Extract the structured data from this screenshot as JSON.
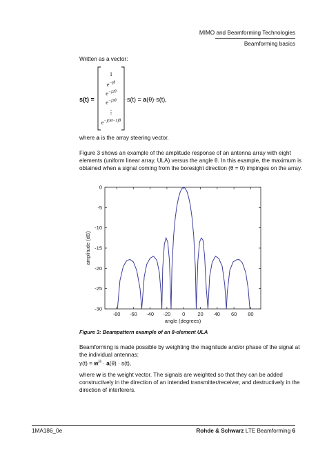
{
  "header": {
    "title": "MIMO and Beamforming Technologies",
    "section": "Beamforming basics"
  },
  "intro": "Written as a vector:",
  "equation1": {
    "lhs": "s(t) =",
    "entries": [
      "1",
      {
        "base": "e",
        "exp": "−jθ"
      },
      {
        "base": "e",
        "exp": "−j2θ"
      },
      {
        "base": "e",
        "exp": "−j3θ"
      },
      "⋮",
      {
        "base": "e",
        "exp": "−j(M−1)θ"
      }
    ],
    "rhs_start": "·s(t) = ",
    "rhs_bold": "a",
    "rhs_end": "(θ)·s(t),"
  },
  "para1": {
    "start": "where ",
    "bold": "a",
    "end": " is the array steering vector."
  },
  "para2": "Figure 3 shows an example of the amplitude response of an antenna array with eight elements (uniform linear array, ULA) versus the angle θ. In this example, the maximum is obtained when a signal coming from the boresight direction (θ = 0) impinges on the array.",
  "chart_data": {
    "type": "line",
    "x_label": "angle (degrees)",
    "y_label": "amplitude (dB)",
    "color": "#3c3c9c",
    "x": [
      -79,
      -76,
      -72,
      -68,
      -64,
      -60,
      -56,
      -52,
      -50,
      -47,
      -44,
      -40,
      -36,
      -32,
      -29,
      -27,
      -26,
      -25,
      -23,
      -21,
      -19,
      -17,
      -15,
      -14,
      -12,
      -10,
      -8,
      -6,
      -4,
      -2,
      0,
      2,
      4,
      6,
      8,
      10,
      12,
      14,
      15,
      17,
      19,
      21,
      23,
      25,
      27,
      29,
      31,
      34,
      38,
      42,
      46,
      49,
      51,
      52,
      55,
      59,
      63,
      66,
      70,
      74,
      77,
      79
    ],
    "values": [
      -30,
      -23,
      -19.5,
      -18.1,
      -17.8,
      -18.4,
      -20.5,
      -25,
      -30,
      -22,
      -19,
      -17.5,
      -17,
      -18,
      -21,
      -26,
      -30,
      -20,
      -14,
      -12.5,
      -13.5,
      -18,
      -30,
      -20,
      -12,
      -7.5,
      -4.5,
      -2.5,
      -1.1,
      -0.3,
      0,
      -0.3,
      -1.1,
      -2.5,
      -4.5,
      -7.5,
      -12,
      -20,
      -30,
      -18,
      -13.5,
      -12.5,
      -13,
      -17,
      -25,
      -30,
      -22,
      -18.5,
      -17,
      -17.6,
      -19.5,
      -24,
      -30,
      -26,
      -20.5,
      -18.4,
      -17.9,
      -17.8,
      -18.6,
      -21,
      -25,
      -30
    ],
    "xlim": [
      -94,
      92
    ],
    "ylim": [
      -30,
      0
    ],
    "xticks": [
      -80,
      -60,
      -40,
      -20,
      0,
      20,
      40,
      60,
      80
    ],
    "yticks": [
      0,
      -5,
      -10,
      -15,
      -20,
      -25,
      -30
    ]
  },
  "caption": "Figure 3: Beampattern example of an 8-element ULA",
  "para3": "Beamforming is made possible by weighting the magnitude and/or phase of the signal at the individual antennas:",
  "equation2": {
    "start": "y(t) = ",
    "w": "w",
    "sup": "H",
    "mid": " · ",
    "a": "a",
    "end": "(θ) · s(t),"
  },
  "para4": {
    "start": "where ",
    "bold": "w",
    "end": " is the weight vector. The signals are weighted so that they can be added constructively in the direction of an intended transmitter/receiver, and destructively in the direction of interferers."
  },
  "footer": {
    "doc": "1MA186_0e",
    "company": "Rohde & Schwarz",
    "title": " LTE Beamforming ",
    "page": "6"
  }
}
